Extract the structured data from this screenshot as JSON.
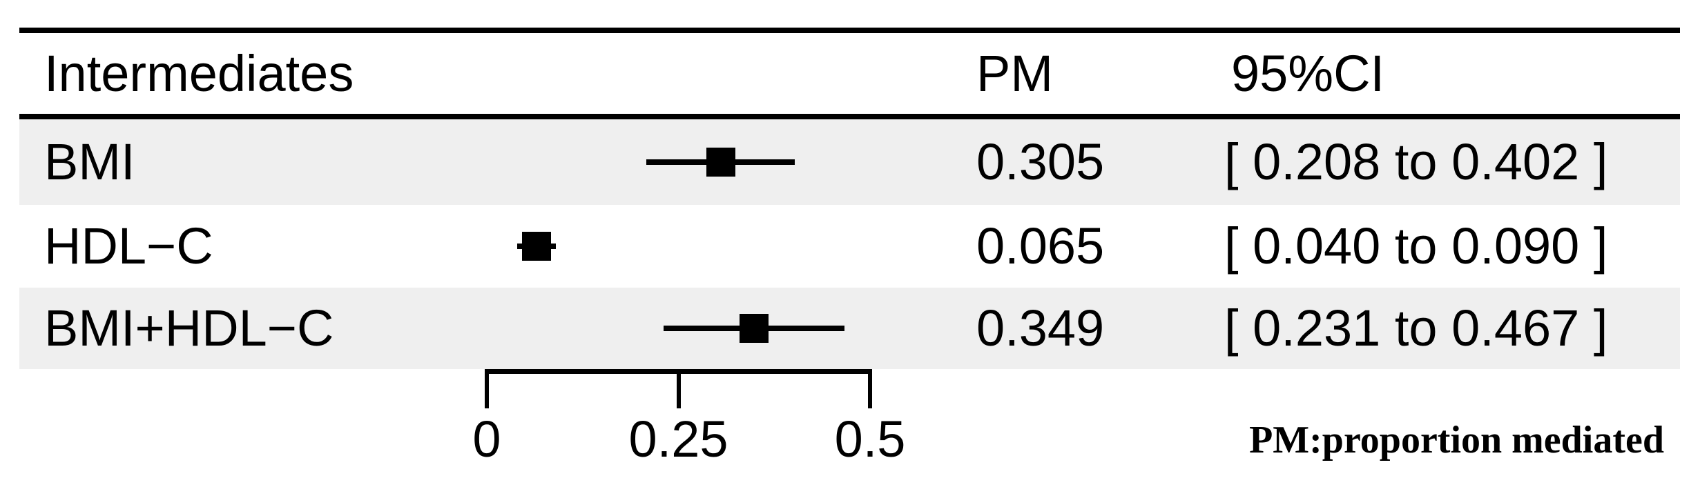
{
  "figure": {
    "header": {
      "intermediates": "Intermediates",
      "pm": "PM",
      "ci": "95%CI"
    },
    "rows": [
      {
        "label": "BMI",
        "pm": "0.305",
        "ci": "[ 0.208 to 0.402 ]"
      },
      {
        "label": "HDL−C",
        "pm": "0.065",
        "ci": "[ 0.040 to 0.090 ]"
      },
      {
        "label": "BMI+HDL−C",
        "pm": "0.349",
        "ci": "[ 0.231 to 0.467 ]"
      }
    ],
    "axis": {
      "tick_labels": [
        "0",
        "0.25",
        "0.5"
      ]
    },
    "footnote": "PM:proportion mediated"
  },
  "colors": {
    "text": "#000000",
    "band": "#efefef",
    "marker": "#000000"
  },
  "chart_data": {
    "type": "forest",
    "title": "",
    "categories": [
      "BMI",
      "HDL−C",
      "BMI+HDL−C"
    ],
    "series": [
      {
        "name": "PM",
        "values": [
          0.305,
          0.065,
          0.349
        ]
      }
    ],
    "ci_low": [
      0.208,
      0.04,
      0.231
    ],
    "ci_high": [
      0.402,
      0.09,
      0.467
    ],
    "columns": {
      "label": "Intermediates",
      "pm": "PM",
      "ci": "95%CI"
    },
    "x_ticks": [
      0,
      0.25,
      0.5
    ],
    "xlim": [
      0,
      0.5
    ],
    "grid": false,
    "legend": false,
    "footnote": "PM:proportion mediated"
  }
}
